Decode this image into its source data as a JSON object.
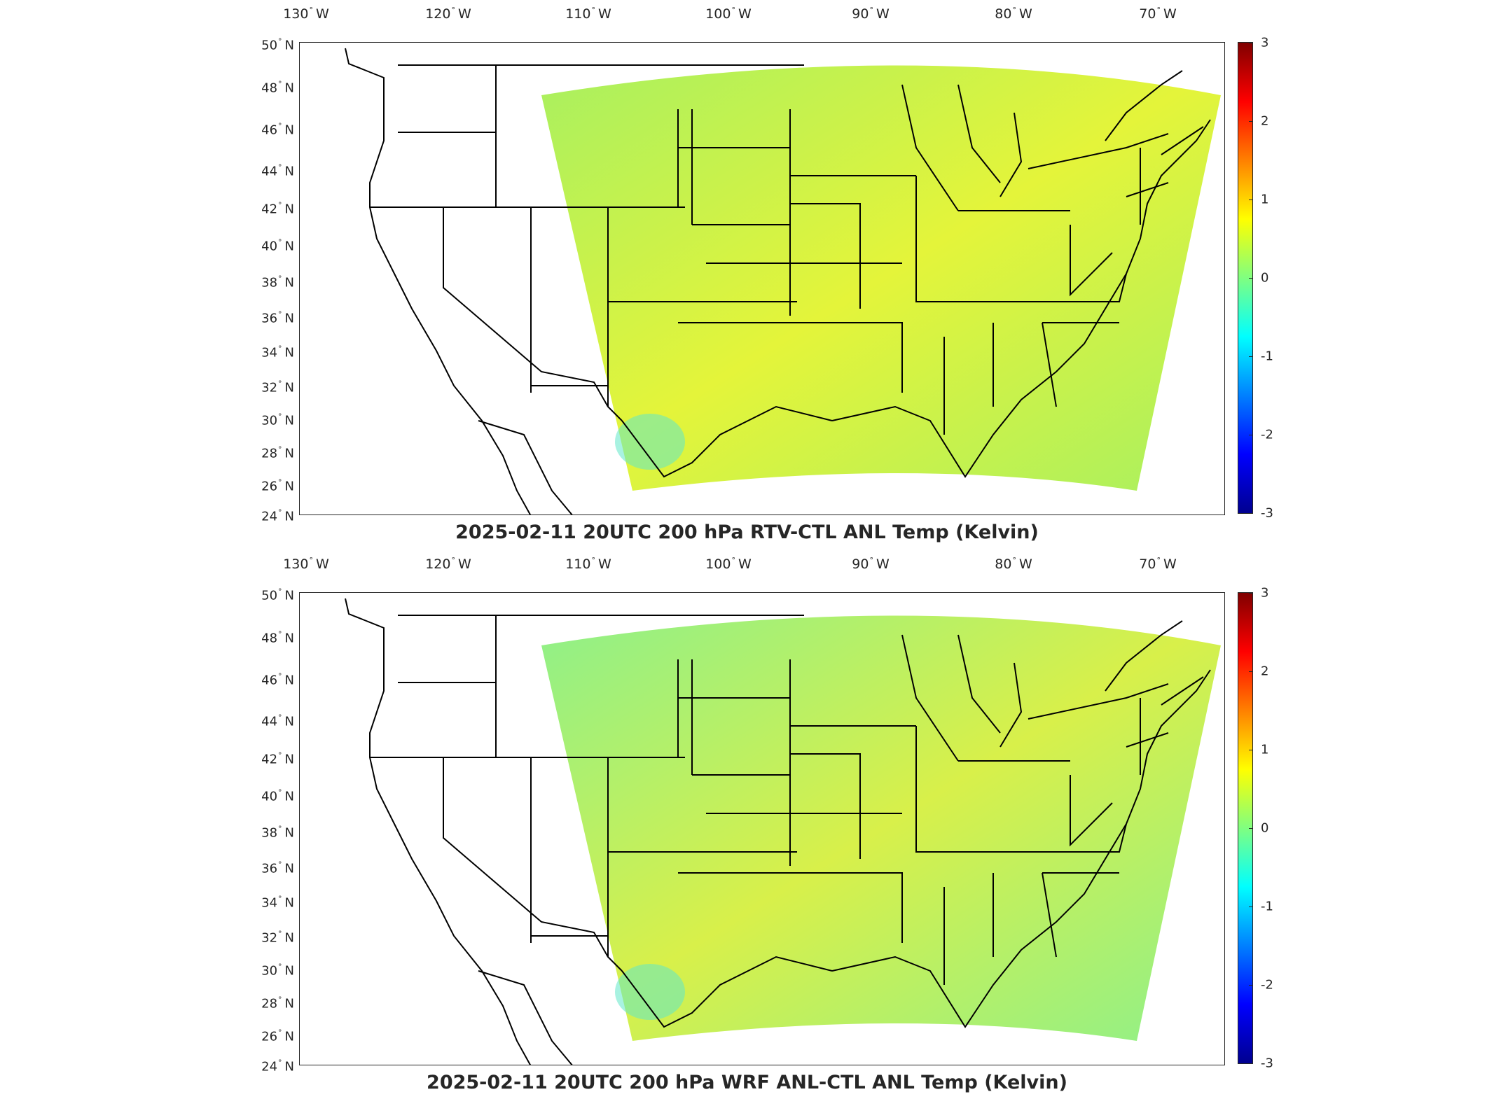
{
  "lon_labels": [
    {
      "deg": "130",
      "hemi": "W"
    },
    {
      "deg": "120",
      "hemi": "W"
    },
    {
      "deg": "110",
      "hemi": "W"
    },
    {
      "deg": "100",
      "hemi": "W"
    },
    {
      "deg": "90",
      "hemi": "W"
    },
    {
      "deg": "80",
      "hemi": "W"
    },
    {
      "deg": "70",
      "hemi": "W"
    }
  ],
  "lat_labels": [
    {
      "deg": "50",
      "hemi": "N"
    },
    {
      "deg": "48",
      "hemi": "N"
    },
    {
      "deg": "46",
      "hemi": "N"
    },
    {
      "deg": "44",
      "hemi": "N"
    },
    {
      "deg": "42",
      "hemi": "N"
    },
    {
      "deg": "40",
      "hemi": "N"
    },
    {
      "deg": "38",
      "hemi": "N"
    },
    {
      "deg": "36",
      "hemi": "N"
    },
    {
      "deg": "34",
      "hemi": "N"
    },
    {
      "deg": "32",
      "hemi": "N"
    },
    {
      "deg": "30",
      "hemi": "N"
    },
    {
      "deg": "28",
      "hemi": "N"
    },
    {
      "deg": "26",
      "hemi": "N"
    },
    {
      "deg": "24",
      "hemi": "N"
    }
  ],
  "colorbar": {
    "ticks": [
      "3",
      "2",
      "1",
      "0",
      "-1",
      "-2",
      "-3"
    ],
    "range": [
      -3,
      3
    ],
    "colormap": [
      "#00008f",
      "#0000ff",
      "#0080ff",
      "#00ffff",
      "#80ff80",
      "#ffff00",
      "#ff8000",
      "#ff0000",
      "#800000"
    ]
  },
  "panels": [
    {
      "title": "2025-02-11 20UTC 200 hPa RTV-CTL ANL Temp (Kelvin)",
      "field_color": "#a8f060",
      "accent_color": "#e4f43a"
    },
    {
      "title": "2025-02-11 20UTC 200 hPa WRF ANL-CTL ANL Temp (Kelvin)",
      "field_color": "#8ef08a",
      "accent_color": "#d8f04a"
    }
  ]
}
